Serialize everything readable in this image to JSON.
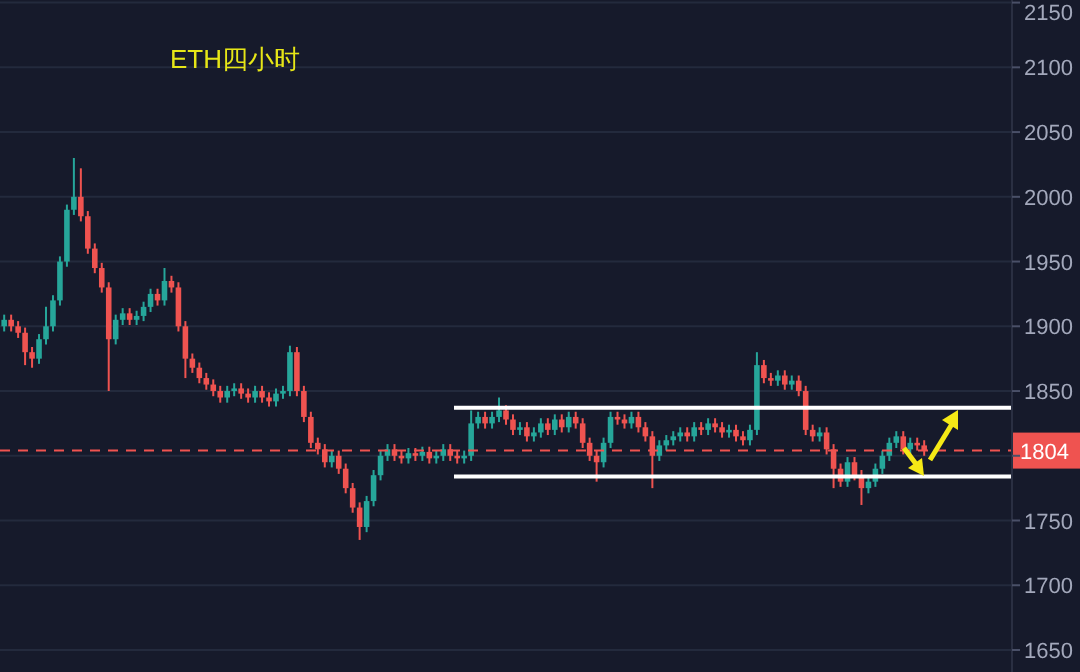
{
  "chart_data": {
    "type": "candlestick",
    "title": "ETH四小时",
    "categories": [
      null,
      null,
      null,
      null,
      null,
      null,
      null,
      null,
      null,
      null,
      null,
      null,
      null,
      null,
      null,
      null,
      null,
      null,
      null,
      null,
      null,
      null,
      null,
      null,
      null,
      null,
      null,
      null,
      null,
      null,
      null,
      null,
      null,
      null,
      null,
      null,
      null,
      null,
      null,
      null,
      null,
      null,
      null,
      null,
      null,
      null,
      null,
      null,
      null,
      null,
      null,
      null,
      null,
      null,
      null,
      null,
      null,
      null,
      null,
      null,
      null,
      null,
      null,
      null,
      null,
      null,
      null,
      null,
      null,
      null,
      null,
      null,
      null,
      null,
      null,
      null,
      null,
      null,
      null,
      null,
      null,
      null,
      null,
      null,
      null,
      null,
      null,
      null,
      null,
      null,
      null,
      null,
      null,
      null,
      null,
      null,
      null,
      null,
      null,
      null,
      null,
      null,
      null,
      null,
      null,
      null,
      null,
      null,
      null,
      null,
      null,
      null,
      null,
      null,
      null,
      null,
      null,
      null,
      null,
      null,
      null,
      null,
      null,
      null,
      null,
      null,
      null,
      null,
      null,
      null,
      null,
      null,
      null,
      null,
      null,
      null,
      null,
      null,
      null,
      null,
      null,
      null,
      null,
      null,
      null
    ],
    "ohlc": [
      [
        1900,
        1909,
        1896,
        1905
      ],
      [
        1905,
        1909,
        1896,
        1900
      ],
      [
        1900,
        1904,
        1891,
        1895
      ],
      [
        1895,
        1899,
        1870,
        1880
      ],
      [
        1880,
        1884,
        1868,
        1875
      ],
      [
        1875,
        1894,
        1871,
        1890
      ],
      [
        1890,
        1915,
        1886,
        1900
      ],
      [
        1900,
        1924,
        1896,
        1920
      ],
      [
        1920,
        1954,
        1916,
        1950
      ],
      [
        1950,
        1994,
        1946,
        1990
      ],
      [
        1990,
        2030,
        1986,
        2000
      ],
      [
        2000,
        2022,
        1981,
        1985
      ],
      [
        1985,
        1989,
        1956,
        1960
      ],
      [
        1960,
        1964,
        1941,
        1945
      ],
      [
        1945,
        1949,
        1926,
        1930
      ],
      [
        1930,
        1934,
        1850,
        1890
      ],
      [
        1890,
        1909,
        1886,
        1905
      ],
      [
        1905,
        1914,
        1901,
        1910
      ],
      [
        1910,
        1914,
        1901,
        1905
      ],
      [
        1905,
        1912,
        1901,
        1908
      ],
      [
        1908,
        1919,
        1904,
        1915
      ],
      [
        1915,
        1929,
        1911,
        1925
      ],
      [
        1925,
        1929,
        1916,
        1920
      ],
      [
        1920,
        1945,
        1916,
        1935
      ],
      [
        1935,
        1939,
        1926,
        1930
      ],
      [
        1930,
        1934,
        1896,
        1900
      ],
      [
        1900,
        1904,
        1860,
        1875
      ],
      [
        1875,
        1879,
        1864,
        1868
      ],
      [
        1868,
        1872,
        1856,
        1860
      ],
      [
        1860,
        1864,
        1851,
        1855
      ],
      [
        1855,
        1859,
        1846,
        1850
      ],
      [
        1850,
        1854,
        1841,
        1845
      ],
      [
        1845,
        1854,
        1841,
        1850
      ],
      [
        1850,
        1856,
        1846,
        1852
      ],
      [
        1852,
        1856,
        1844,
        1848
      ],
      [
        1848,
        1852,
        1841,
        1845
      ],
      [
        1845,
        1854,
        1841,
        1850
      ],
      [
        1850,
        1854,
        1841,
        1845
      ],
      [
        1845,
        1849,
        1838,
        1842
      ],
      [
        1842,
        1852,
        1838,
        1848
      ],
      [
        1848,
        1854,
        1844,
        1850
      ],
      [
        1850,
        1885,
        1846,
        1880
      ],
      [
        1880,
        1884,
        1846,
        1850
      ],
      [
        1850,
        1854,
        1826,
        1830
      ],
      [
        1830,
        1834,
        1806,
        1810
      ],
      [
        1810,
        1814,
        1801,
        1805
      ],
      [
        1805,
        1809,
        1791,
        1795
      ],
      [
        1795,
        1804,
        1791,
        1800
      ],
      [
        1800,
        1804,
        1786,
        1790
      ],
      [
        1790,
        1794,
        1771,
        1775
      ],
      [
        1775,
        1779,
        1756,
        1760
      ],
      [
        1760,
        1764,
        1735,
        1745
      ],
      [
        1745,
        1769,
        1741,
        1765
      ],
      [
        1765,
        1789,
        1761,
        1785
      ],
      [
        1785,
        1804,
        1781,
        1800
      ],
      [
        1800,
        1809,
        1796,
        1805
      ],
      [
        1805,
        1809,
        1796,
        1800
      ],
      [
        1800,
        1804,
        1794,
        1798
      ],
      [
        1798,
        1806,
        1794,
        1802
      ],
      [
        1802,
        1806,
        1796,
        1800
      ],
      [
        1800,
        1807,
        1796,
        1803
      ],
      [
        1803,
        1807,
        1794,
        1798
      ],
      [
        1798,
        1804,
        1794,
        1800
      ],
      [
        1800,
        1809,
        1796,
        1805
      ],
      [
        1805,
        1809,
        1796,
        1800
      ],
      [
        1800,
        1804,
        1794,
        1798
      ],
      [
        1798,
        1804,
        1794,
        1800
      ],
      [
        1800,
        1835,
        1796,
        1825
      ],
      [
        1825,
        1834,
        1821,
        1830
      ],
      [
        1830,
        1834,
        1821,
        1825
      ],
      [
        1825,
        1834,
        1821,
        1830
      ],
      [
        1830,
        1845,
        1826,
        1835
      ],
      [
        1835,
        1839,
        1824,
        1828
      ],
      [
        1828,
        1832,
        1816,
        1820
      ],
      [
        1820,
        1826,
        1816,
        1822
      ],
      [
        1822,
        1826,
        1811,
        1815
      ],
      [
        1815,
        1822,
        1811,
        1818
      ],
      [
        1818,
        1829,
        1814,
        1825
      ],
      [
        1825,
        1829,
        1816,
        1820
      ],
      [
        1820,
        1832,
        1816,
        1828
      ],
      [
        1828,
        1832,
        1818,
        1822
      ],
      [
        1822,
        1834,
        1818,
        1830
      ],
      [
        1830,
        1834,
        1821,
        1825
      ],
      [
        1825,
        1829,
        1806,
        1810
      ],
      [
        1810,
        1814,
        1796,
        1800
      ],
      [
        1800,
        1804,
        1780,
        1795
      ],
      [
        1795,
        1814,
        1791,
        1810
      ],
      [
        1810,
        1834,
        1806,
        1830
      ],
      [
        1830,
        1834,
        1824,
        1828
      ],
      [
        1828,
        1832,
        1821,
        1825
      ],
      [
        1825,
        1834,
        1821,
        1830
      ],
      [
        1830,
        1834,
        1818,
        1822
      ],
      [
        1822,
        1826,
        1811,
        1815
      ],
      [
        1815,
        1819,
        1775,
        1800
      ],
      [
        1800,
        1812,
        1796,
        1808
      ],
      [
        1808,
        1816,
        1804,
        1812
      ],
      [
        1812,
        1819,
        1808,
        1815
      ],
      [
        1815,
        1822,
        1811,
        1818
      ],
      [
        1818,
        1822,
        1811,
        1815
      ],
      [
        1815,
        1826,
        1811,
        1822
      ],
      [
        1822,
        1826,
        1816,
        1820
      ],
      [
        1820,
        1829,
        1816,
        1825
      ],
      [
        1825,
        1829,
        1818,
        1822
      ],
      [
        1822,
        1826,
        1814,
        1818
      ],
      [
        1818,
        1824,
        1814,
        1820
      ],
      [
        1820,
        1824,
        1811,
        1815
      ],
      [
        1815,
        1819,
        1808,
        1812
      ],
      [
        1812,
        1824,
        1808,
        1820
      ],
      [
        1820,
        1880,
        1816,
        1870
      ],
      [
        1870,
        1874,
        1856,
        1860
      ],
      [
        1860,
        1864,
        1854,
        1858
      ],
      [
        1858,
        1866,
        1854,
        1862
      ],
      [
        1862,
        1866,
        1851,
        1855
      ],
      [
        1855,
        1862,
        1851,
        1858
      ],
      [
        1858,
        1862,
        1846,
        1850
      ],
      [
        1850,
        1854,
        1816,
        1820
      ],
      [
        1820,
        1824,
        1811,
        1815
      ],
      [
        1815,
        1822,
        1811,
        1818
      ],
      [
        1818,
        1822,
        1801,
        1805
      ],
      [
        1805,
        1809,
        1775,
        1790
      ],
      [
        1790,
        1794,
        1776,
        1780
      ],
      [
        1780,
        1799,
        1776,
        1795
      ],
      [
        1795,
        1799,
        1781,
        1785
      ],
      [
        1785,
        1789,
        1762,
        1775
      ],
      [
        1775,
        1784,
        1771,
        1780
      ],
      [
        1780,
        1794,
        1776,
        1790
      ],
      [
        1790,
        1804,
        1786,
        1800
      ],
      [
        1800,
        1814,
        1796,
        1810
      ],
      [
        1810,
        1819,
        1806,
        1815
      ],
      [
        1815,
        1819,
        1801,
        1805
      ],
      [
        1805,
        1814,
        1801,
        1810
      ],
      [
        1810,
        1814,
        1804,
        1808
      ],
      [
        1808,
        1812,
        1800,
        1804
      ],
      null,
      null,
      null,
      null,
      null,
      null,
      null,
      null,
      null,
      null,
      null,
      null
    ],
    "ylim": [
      1633,
      2152
    ],
    "yticks": [
      1650,
      1700,
      1750,
      {
        "value": 1800,
        "label": null
      },
      1850,
      1900,
      1950,
      2000,
      2050,
      2100,
      2150
    ],
    "ref_lines": [
      {
        "axis": "y",
        "value": 1837,
        "color": "#ffffff",
        "line_style": "solid"
      },
      {
        "axis": "y",
        "value": 1784,
        "color": "#ffffff",
        "line_style": "solid"
      },
      {
        "axis": "y",
        "value": 1804,
        "label": "1804",
        "color": "#ef5350",
        "line_style": "dashed"
      }
    ],
    "grid": "y",
    "tick_labels": "y"
  }
}
